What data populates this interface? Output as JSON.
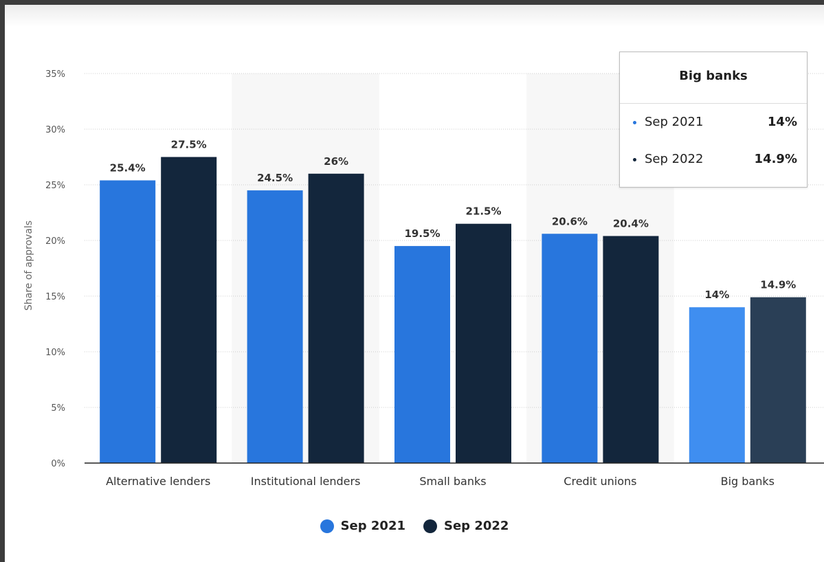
{
  "colors": {
    "sep2021": "#2876dd",
    "sep2022": "#13263c",
    "sep2021_hover": "#3f8ef0",
    "sep2022_hover": "#2a3f56",
    "grid": "#cccccc",
    "band": "#f7f7f7"
  },
  "chart_data": {
    "type": "bar",
    "ylabel": "Share of approvals",
    "xlabel": "",
    "ylim": [
      0,
      35
    ],
    "yticks": [
      "0%",
      "5%",
      "10%",
      "15%",
      "20%",
      "25%",
      "30%",
      "35%"
    ],
    "ytick_values": [
      0,
      5,
      10,
      15,
      20,
      25,
      30,
      35
    ],
    "grid": true,
    "legend_position": "bottom-center",
    "categories": [
      "Alternative lenders",
      "Institutional lenders",
      "Small banks",
      "Credit unions",
      "Big banks"
    ],
    "series": [
      {
        "name": "Sep 2021",
        "values": [
          25.4,
          24.5,
          19.5,
          20.6,
          14
        ],
        "labels": [
          "25.4%",
          "24.5%",
          "19.5%",
          "20.6%",
          "14%"
        ]
      },
      {
        "name": "Sep 2022",
        "values": [
          27.5,
          26,
          21.5,
          20.4,
          14.9
        ],
        "labels": [
          "27.5%",
          "26%",
          "21.5%",
          "20.4%",
          "14.9%"
        ]
      }
    ],
    "highlighted_category": "Big banks"
  },
  "tooltip": {
    "title": "Big banks",
    "rows": [
      {
        "name": "Sep 2021",
        "value": "14%"
      },
      {
        "name": "Sep 2022",
        "value": "14.9%"
      }
    ]
  },
  "legend": {
    "items": [
      {
        "name": "Sep 2021"
      },
      {
        "name": "Sep 2022"
      }
    ]
  }
}
